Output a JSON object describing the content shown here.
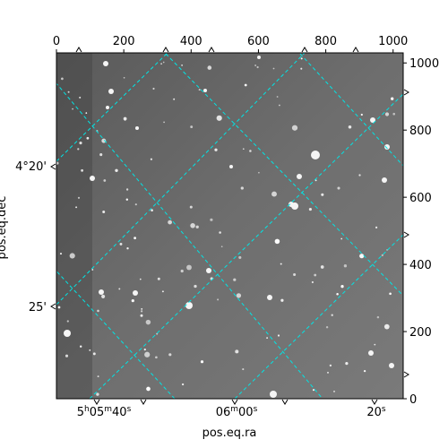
{
  "chart_data": {
    "type": "image",
    "image_description_stars": [
      {
        "px": 1,
        "py": 1
      },
      {
        "px": 0,
        "py": 0
      }
    ],
    "pixel_axes": {
      "x_ticks": [
        "0",
        "200",
        "400",
        "600",
        "800",
        "1000"
      ],
      "x_values": [
        0,
        200,
        400,
        600,
        800,
        1000
      ],
      "xlim": [
        0,
        1030
      ],
      "y_ticks": [
        "0",
        "200",
        "400",
        "600",
        "800",
        "1000"
      ],
      "y_values": [
        0,
        200,
        400,
        600,
        800,
        1000
      ],
      "ylim": [
        0,
        1030
      ]
    },
    "world_axes": {
      "xlabel": "pos.eq.ra",
      "ylabel": "pos.eq.dec",
      "ra_ticks": [
        {
          "h": "5",
          "m": "05",
          "s": "40",
          "full": true
        },
        {
          "m": "06",
          "s": "00",
          "full": false
        },
        {
          "s": "20",
          "full": false
        }
      ],
      "dec_ticks": [
        "4°20'",
        "25'"
      ]
    },
    "grid": true,
    "grid_color": "#00e5e5",
    "image_colormap": "gray"
  }
}
